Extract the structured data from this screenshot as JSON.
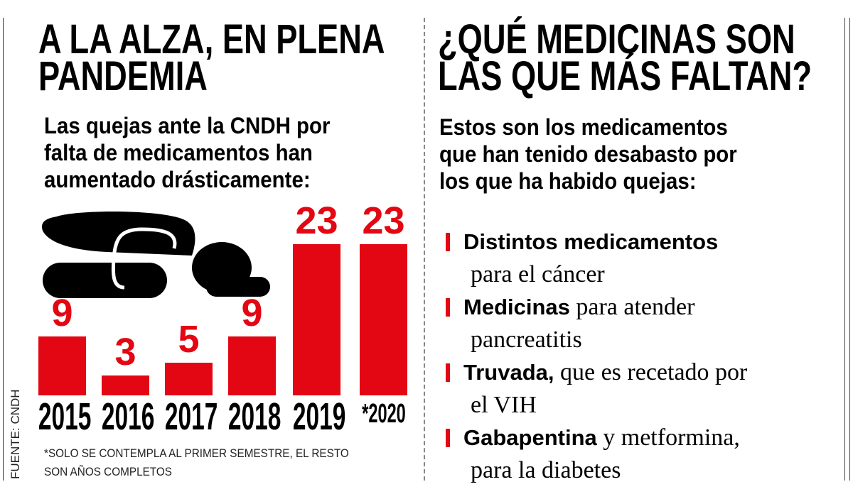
{
  "left": {
    "title_lines": [
      "A LA ALZA, EN PLENA",
      "PANDEMIA"
    ],
    "subtitle_lines": [
      "Las quejas ante la CNDH por",
      "falta de medicamentos han",
      "aumentado drásticamente:"
    ],
    "icon": "sleeping-person-icon",
    "note_lines": [
      "*SOLO SE CONTEMPLA AL PRIMER SEMESTRE, EL RESTO",
      "SON AÑOS COMPLETOS"
    ],
    "source": "FUENTE: CNDH"
  },
  "chart_data": {
    "type": "bar",
    "categories": [
      "2015",
      "2016",
      "2017",
      "2018",
      "2019",
      "*2020"
    ],
    "values": [
      9,
      3,
      5,
      9,
      23,
      23
    ],
    "labels": [
      "9",
      "3",
      "5",
      "9",
      "23",
      "23"
    ],
    "ylim": [
      0,
      23
    ],
    "grid": false,
    "bar_color": "#e30613"
  },
  "right": {
    "title_lines": [
      "¿QUÉ MEDICINAS SON",
      "LAS QUE MÁS FALTAN?"
    ],
    "subtitle_lines": [
      "Estos son los medicamentos",
      "que han tenido desabasto por",
      "los que ha habido quejas:"
    ],
    "items": [
      {
        "bold": "Distintos medicamentos",
        "rest": "",
        "line2": "para el cáncer"
      },
      {
        "bold": "Medicinas",
        "rest": " para atender",
        "line2": "pancreatitis"
      },
      {
        "bold": "Truvada,",
        "rest": " que es recetado por",
        "line2": "el VIH"
      },
      {
        "bold": "Gabapentina",
        "rest": " y metformina,",
        "line2": "para la diabetes"
      }
    ],
    "accent_color": "#e30613"
  }
}
